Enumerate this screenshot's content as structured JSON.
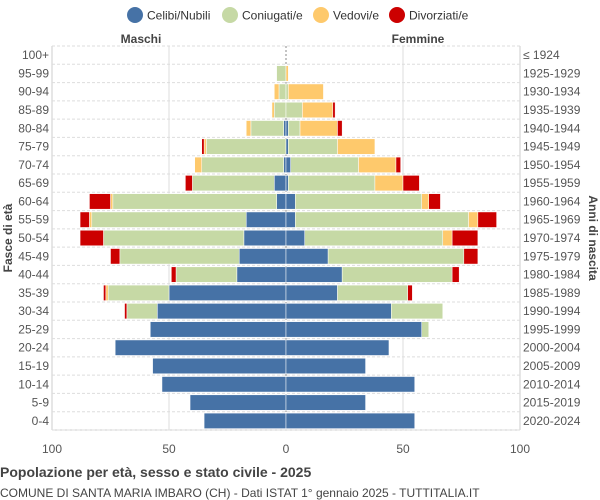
{
  "chart_data": {
    "type": "bar",
    "orientation": "horizontal-pyramid",
    "title": "Popolazione per età, sesso e stato civile - 2025",
    "subtitle": "COMUNE DI SANTA MARIA IMBARO (CH) - Dati ISTAT 1° gennaio 2025 - TUTTITALIA.IT",
    "ylabel_left": "Fasce di età",
    "ylabel_right": "Anni di nascita",
    "side_labels": {
      "left": "Maschi",
      "right": "Femmine"
    },
    "xlim": [
      -100,
      100
    ],
    "xticks": [
      "100",
      "50",
      "0",
      "50",
      "100"
    ],
    "grid": true,
    "legend_position": "top",
    "series_names": [
      "Celibi/Nubili",
      "Coniugati/e",
      "Vedovi/e",
      "Divorziati/e"
    ],
    "colors": [
      "#4672a6",
      "#c6d9a5",
      "#fec96c",
      "#cc0000"
    ],
    "categories": [
      "100+",
      "95-99",
      "90-94",
      "85-89",
      "80-84",
      "75-79",
      "70-74",
      "65-69",
      "60-64",
      "55-59",
      "50-54",
      "45-49",
      "40-44",
      "35-39",
      "30-34",
      "25-29",
      "20-24",
      "15-19",
      "10-14",
      "5-9",
      "0-4"
    ],
    "birth_years": [
      "≤ 1924",
      "1925-1929",
      "1930-1934",
      "1935-1939",
      "1940-1944",
      "1945-1949",
      "1950-1954",
      "1955-1959",
      "1960-1964",
      "1965-1969",
      "1970-1974",
      "1975-1979",
      "1980-1984",
      "1985-1989",
      "1990-1994",
      "1995-1999",
      "2000-2004",
      "2005-2009",
      "2010-2014",
      "2015-2019",
      "2020-2024"
    ],
    "males": {
      "celibi": [
        0,
        0,
        0,
        0,
        1,
        0,
        1,
        5,
        4,
        17,
        18,
        20,
        21,
        50,
        55,
        58,
        73,
        57,
        53,
        41,
        35
      ],
      "coniugati": [
        0,
        4,
        3,
        5,
        14,
        34,
        35,
        35,
        70,
        66,
        60,
        51,
        26,
        26,
        13,
        0,
        0,
        0,
        0,
        0,
        0
      ],
      "vedovi": [
        0,
        0,
        2,
        1,
        2,
        1,
        3,
        0,
        1,
        1,
        0,
        0,
        0,
        1,
        0,
        0,
        0,
        0,
        0,
        0,
        0
      ],
      "divorziati": [
        0,
        0,
        0,
        0,
        0,
        1,
        0,
        3,
        9,
        4,
        10,
        4,
        2,
        1,
        1,
        0,
        0,
        0,
        0,
        0,
        0
      ]
    },
    "females": {
      "nubili": [
        0,
        0,
        0,
        0,
        1,
        1,
        2,
        1,
        4,
        4,
        8,
        18,
        24,
        22,
        45,
        58,
        44,
        34,
        55,
        34,
        55
      ],
      "coniugate": [
        0,
        0,
        1,
        7,
        5,
        21,
        29,
        37,
        54,
        74,
        59,
        58,
        47,
        30,
        22,
        3,
        0,
        0,
        0,
        0,
        0
      ],
      "vedove": [
        0,
        1,
        15,
        13,
        16,
        16,
        16,
        12,
        3,
        4,
        4,
        0,
        0,
        0,
        0,
        0,
        0,
        0,
        0,
        0,
        0
      ],
      "divorziate": [
        0,
        0,
        0,
        1,
        2,
        0,
        2,
        7,
        5,
        8,
        11,
        6,
        3,
        2,
        0,
        0,
        0,
        0,
        0,
        0,
        0
      ]
    }
  }
}
